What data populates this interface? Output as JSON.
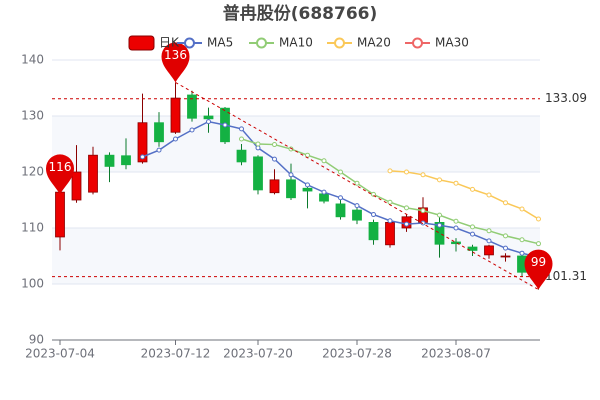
{
  "chart_data": {
    "type": "candlestick",
    "title": "普冉股份(688766)",
    "categories": [
      "2023-07-04",
      null,
      null,
      null,
      null,
      null,
      null,
      "2023-07-12",
      null,
      null,
      null,
      null,
      "2023-07-20",
      null,
      null,
      null,
      null,
      null,
      "2023-07-28",
      null,
      null,
      null,
      null,
      null,
      "2023-08-07",
      null,
      null,
      null,
      null,
      null
    ],
    "candles": {
      "name": "日K",
      "up_color": "#ec0000",
      "down_color": "#14b143",
      "open": [
        108.4,
        115,
        116.4,
        123,
        122.9,
        121.8,
        128.8,
        127.1,
        133.75,
        130,
        131.4,
        123.9,
        122.7,
        116.3,
        118.6,
        117.1,
        116.1,
        114.3,
        113.2,
        111,
        107,
        110,
        111,
        111,
        107.5,
        106.6,
        105.2,
        104.9,
        105,
        102.5
      ],
      "close": [
        116.4,
        120,
        123,
        121,
        121.3,
        128.8,
        125.4,
        133.2,
        129.6,
        129.5,
        125.4,
        121.8,
        116.8,
        118.6,
        115.4,
        116.6,
        114.8,
        112,
        111.4,
        107.9,
        111,
        112,
        113.6,
        107.1,
        107.2,
        106,
        106.8,
        105,
        102.1,
        101
      ],
      "high": [
        116.5,
        124.8,
        124.5,
        123.5,
        126,
        134,
        130.7,
        136,
        134.5,
        131.5,
        131.6,
        125,
        123,
        120.5,
        121.5,
        118,
        116.6,
        115,
        114,
        111.5,
        111.5,
        112.5,
        115.5,
        112.5,
        108.2,
        107,
        107,
        105.5,
        105.5,
        103
      ],
      "low": [
        106,
        114.5,
        116,
        118.2,
        120.5,
        121.5,
        124.5,
        126.8,
        129,
        127,
        125,
        121.2,
        116,
        116,
        115,
        113.5,
        114.4,
        111.5,
        110.7,
        107,
        106.5,
        109.3,
        110.7,
        104.7,
        105.8,
        105,
        104.5,
        104,
        101.3,
        99
      ]
    },
    "series": [
      {
        "name": "MA5",
        "color": "#5470c6",
        "values": [
          null,
          null,
          null,
          null,
          null,
          122.7,
          123.9,
          125.9,
          127.5,
          129,
          128.4,
          127.7,
          124.3,
          122.3,
          119.5,
          117.7,
          116.4,
          115.4,
          114,
          112.4,
          111.3,
          110.7,
          110.9,
          110.5,
          110,
          108.9,
          107.7,
          106.4,
          105.5,
          104.8
        ]
      },
      {
        "name": "MA10",
        "color": "#91cc75",
        "values": [
          null,
          null,
          null,
          null,
          null,
          null,
          null,
          null,
          null,
          null,
          null,
          125.9,
          125,
          124.9,
          124.1,
          123,
          122,
          120,
          118,
          116,
          114.6,
          113.6,
          113.1,
          112.3,
          111.2,
          110.2,
          109.5,
          108.6,
          107.9,
          107.2
        ]
      },
      {
        "name": "MA20",
        "color": "#fac858",
        "values": [
          null,
          null,
          null,
          null,
          null,
          null,
          null,
          null,
          null,
          null,
          null,
          null,
          null,
          null,
          null,
          null,
          null,
          null,
          null,
          null,
          120.2,
          120,
          119.5,
          118.6,
          118,
          116.9,
          115.9,
          114.5,
          113.4,
          111.6
        ]
      },
      {
        "name": "MA30",
        "color": "#ee6666",
        "values": [
          null,
          null,
          null,
          null,
          null,
          null,
          null,
          null,
          null,
          null,
          null,
          null,
          null,
          null,
          null,
          null,
          null,
          null,
          null,
          null,
          null,
          null,
          null,
          null,
          null,
          null,
          null,
          null,
          null,
          null
        ]
      }
    ],
    "mark_lines": [
      133.09,
      101.31
    ],
    "mark_points": [
      {
        "index": 7,
        "value": 136
      },
      {
        "index": 0,
        "value": 116
      },
      {
        "index": 29,
        "value": 99
      }
    ],
    "ylim": [
      90,
      140
    ],
    "yticks": [
      90,
      100,
      110,
      120,
      130,
      140
    ],
    "grid": true
  }
}
